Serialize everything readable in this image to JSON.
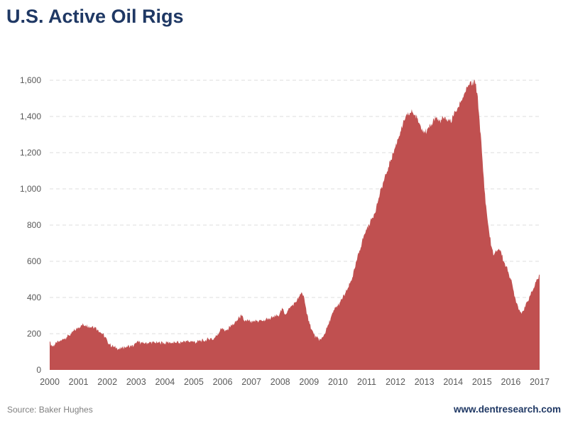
{
  "page": {
    "title": "U.S. Active Oil Rigs",
    "source": "Source: Baker Hughes",
    "website": "www.dentresearch.com"
  },
  "colors": {
    "title_text": "#1F3864",
    "area_fill": "#C05050",
    "axis_text": "#595959",
    "gridline": "#DCDCDC",
    "baseline": "#C0C0C0",
    "source_text": "#808080"
  },
  "chart_data": {
    "type": "area",
    "title": "U.S. Active Oil Rigs",
    "xlabel": "",
    "ylabel": "",
    "ylim": [
      0,
      1600
    ],
    "xlim": [
      2000,
      2017
    ],
    "grid": "horizontal-dashed",
    "legend": "none",
    "y_ticks": [
      0,
      200,
      400,
      600,
      800,
      1000,
      1200,
      1400,
      1600
    ],
    "y_tick_labels": [
      "0",
      "200",
      "400",
      "600",
      "800",
      "1,000",
      "1,200",
      "1,400",
      "1,600"
    ],
    "x_tick_labels": [
      "2000",
      "2001",
      "2002",
      "2003",
      "2004",
      "2005",
      "2006",
      "2007",
      "2008",
      "2009",
      "2010",
      "2011",
      "2012",
      "2013",
      "2014",
      "2015",
      "2016",
      "2017"
    ],
    "series": [
      {
        "name": "U.S. Active Oil Rigs",
        "unit": "rigs",
        "x_start_year": 2000,
        "x_step": "monthly",
        "values": [
          155,
          130,
          138,
          148,
          158,
          165,
          172,
          180,
          190,
          200,
          215,
          225,
          235,
          245,
          250,
          248,
          242,
          236,
          242,
          234,
          224,
          210,
          198,
          182,
          160,
          140,
          132,
          126,
          120,
          114,
          118,
          124,
          130,
          133,
          128,
          134,
          146,
          155,
          150,
          147,
          152,
          147,
          151,
          154,
          148,
          152,
          148,
          152,
          147,
          151,
          154,
          148,
          152,
          156,
          150,
          154,
          158,
          161,
          155,
          159,
          156,
          152,
          158,
          163,
          160,
          166,
          171,
          176,
          168,
          182,
          198,
          220,
          232,
          212,
          226,
          238,
          248,
          258,
          272,
          290,
          297,
          272,
          268,
          273,
          258,
          266,
          272,
          268,
          277,
          270,
          279,
          288,
          284,
          292,
          297,
          301,
          320,
          336,
          308,
          325,
          340,
          356,
          371,
          386,
          406,
          428,
          398,
          310,
          270,
          225,
          195,
          178,
          170,
          168,
          186,
          216,
          250,
          285,
          317,
          344,
          356,
          376,
          398,
          420,
          446,
          476,
          510,
          560,
          610,
          660,
          705,
          750,
          775,
          800,
          830,
          860,
          900,
          950,
          1000,
          1040,
          1080,
          1120,
          1160,
          1195,
          1235,
          1275,
          1315,
          1350,
          1385,
          1405,
          1420,
          1425,
          1410,
          1390,
          1360,
          1335,
          1320,
          1315,
          1335,
          1360,
          1385,
          1395,
          1372,
          1382,
          1390,
          1378,
          1388,
          1370,
          1400,
          1425,
          1450,
          1475,
          1505,
          1535,
          1560,
          1590,
          1575,
          1600,
          1530,
          1380,
          1200,
          1000,
          870,
          760,
          680,
          635,
          655,
          670,
          650,
          600,
          570,
          540,
          500,
          445,
          390,
          350,
          318,
          325,
          345,
          380,
          410,
          435,
          465,
          500,
          525
        ]
      }
    ]
  }
}
